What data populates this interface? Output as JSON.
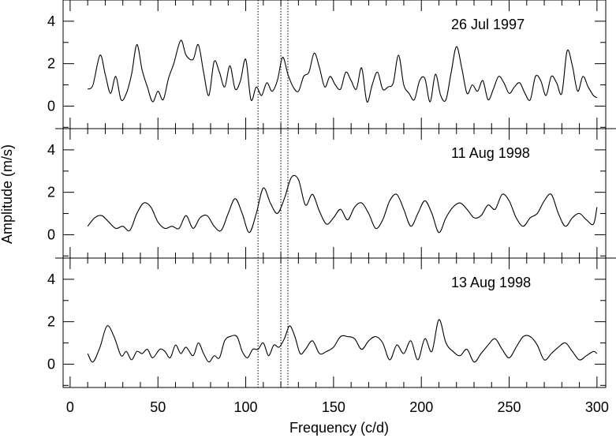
{
  "chart_data": {
    "type": "line",
    "xlabel": "Frequency (c/d)",
    "ylabel": "Amplitude (m/s)",
    "xlim": [
      -4,
      305
    ],
    "ylim": [
      -1.1,
      5.0
    ],
    "xticks": [
      0,
      50,
      100,
      150,
      200,
      250,
      300
    ],
    "yticks": [
      0,
      2,
      4
    ],
    "vlines": [
      107,
      120,
      124
    ],
    "grid": false,
    "legend": "none",
    "panels": [
      {
        "label": "26 Jul 1997",
        "x": [
          10,
          13,
          17,
          20,
          23,
          26,
          29,
          32,
          35,
          38,
          41,
          44,
          47,
          50,
          53,
          56,
          59,
          63,
          66,
          70,
          73,
          76,
          79,
          82,
          85,
          88,
          91,
          94,
          97,
          100,
          103,
          106,
          109,
          112,
          115,
          118,
          121,
          124,
          127,
          130,
          133,
          136,
          139,
          142,
          145,
          148,
          151,
          154,
          157,
          160,
          163,
          166,
          169,
          172,
          175,
          178,
          181,
          184,
          187,
          190,
          193,
          196,
          199,
          202,
          205,
          208,
          211,
          214,
          217,
          220,
          223,
          226,
          229,
          232,
          235,
          238,
          241,
          244,
          247,
          250,
          253,
          256,
          259,
          262,
          265,
          268,
          271,
          274,
          277,
          280,
          283,
          286,
          289,
          292,
          295,
          298,
          300
        ],
        "y": [
          0.8,
          1.0,
          2.4,
          1.5,
          0.6,
          1.4,
          0.3,
          0.6,
          1.5,
          2.9,
          1.7,
          0.9,
          0.2,
          0.7,
          0.3,
          1.3,
          2.0,
          3.1,
          2.4,
          2.2,
          2.9,
          1.6,
          0.5,
          2.1,
          1.6,
          0.9,
          1.9,
          0.8,
          1.2,
          2.2,
          0.3,
          0.9,
          0.5,
          1.1,
          0.7,
          1.2,
          2.3,
          1.5,
          0.9,
          0.7,
          1.4,
          1.6,
          2.5,
          1.8,
          0.9,
          1.4,
          1.0,
          0.8,
          1.6,
          1.2,
          0.8,
          1.8,
          0.2,
          1.0,
          1.6,
          0.8,
          0.9,
          1.1,
          2.4,
          1.0,
          0.6,
          0.3,
          1.2,
          1.3,
          0.2,
          1.5,
          0.5,
          0.3,
          1.6,
          2.8,
          1.8,
          0.6,
          1.0,
          0.7,
          1.2,
          0.3,
          0.8,
          1.4,
          1.1,
          0.6,
          0.9,
          1.1,
          0.6,
          0.3,
          1.4,
          1.2,
          0.5,
          1.4,
          1.1,
          0.6,
          2.6,
          1.9,
          0.7,
          1.4,
          0.9,
          0.5,
          0.4
        ]
      },
      {
        "label": "11 Aug 1998",
        "x": [
          10,
          14,
          18,
          22,
          26,
          30,
          34,
          38,
          42,
          46,
          50,
          54,
          58,
          62,
          66,
          70,
          74,
          78,
          82,
          86,
          90,
          94,
          98,
          102,
          106,
          110,
          114,
          118,
          122,
          126,
          130,
          134,
          138,
          142,
          146,
          150,
          154,
          158,
          162,
          166,
          170,
          174,
          178,
          182,
          186,
          190,
          194,
          198,
          202,
          206,
          210,
          214,
          218,
          222,
          226,
          230,
          234,
          238,
          242,
          246,
          250,
          254,
          258,
          262,
          266,
          270,
          274,
          278,
          282,
          286,
          290,
          294,
          298,
          300
        ],
        "y": [
          0.4,
          0.8,
          0.9,
          0.6,
          0.3,
          0.4,
          0.2,
          1.0,
          1.5,
          1.3,
          0.6,
          0.3,
          0.4,
          0.3,
          0.9,
          0.3,
          0.8,
          0.9,
          0.4,
          0.2,
          1.0,
          1.7,
          1.0,
          0.1,
          1.0,
          2.2,
          1.5,
          1.0,
          1.7,
          2.7,
          2.6,
          1.4,
          1.9,
          1.1,
          0.5,
          0.8,
          1.2,
          0.7,
          1.3,
          1.5,
          1.0,
          0.3,
          0.7,
          1.6,
          1.9,
          1.2,
          0.4,
          1.0,
          1.6,
          1.0,
          0.1,
          0.8,
          1.3,
          1.5,
          1.2,
          0.8,
          0.9,
          1.4,
          1.2,
          1.9,
          1.6,
          0.8,
          0.4,
          0.8,
          1.0,
          1.6,
          1.9,
          1.0,
          0.4,
          0.8,
          1.0,
          0.7,
          0.5,
          1.3
        ]
      },
      {
        "label": "13 Aug 1998",
        "x": [
          10,
          13,
          17,
          21,
          25,
          29,
          32,
          35,
          38,
          41,
          44,
          47,
          51,
          54,
          57,
          60,
          63,
          66,
          70,
          73,
          76,
          79,
          82,
          85,
          88,
          91,
          95,
          98,
          101,
          104,
          107,
          110,
          113,
          116,
          119,
          122,
          125,
          128,
          131,
          134,
          138,
          142,
          146,
          150,
          154,
          158,
          162,
          166,
          170,
          174,
          178,
          182,
          186,
          190,
          194,
          198,
          202,
          206,
          210,
          214,
          218,
          222,
          226,
          230,
          234,
          238,
          242,
          246,
          250,
          254,
          258,
          262,
          266,
          270,
          274,
          278,
          282,
          286,
          290,
          294,
          298,
          300
        ],
        "y": [
          0.5,
          0.1,
          0.8,
          1.8,
          1.3,
          0.4,
          0.6,
          0.2,
          0.6,
          0.5,
          0.7,
          0.3,
          0.7,
          0.6,
          0.3,
          0.9,
          0.5,
          0.8,
          0.4,
          1.0,
          0.5,
          0.1,
          0.4,
          0.3,
          1.1,
          1.3,
          1.3,
          0.6,
          0.3,
          0.7,
          0.7,
          1.0,
          0.4,
          0.9,
          0.8,
          1.2,
          1.8,
          1.3,
          0.5,
          0.7,
          1.1,
          0.5,
          0.6,
          0.8,
          1.3,
          1.3,
          1.2,
          0.7,
          1.1,
          1.3,
          1.0,
          0.2,
          0.9,
          0.5,
          1.1,
          0.2,
          1.2,
          0.6,
          2.1,
          1.0,
          0.6,
          0.4,
          0.7,
          0.1,
          0.5,
          0.9,
          1.2,
          0.7,
          0.3,
          0.8,
          1.3,
          1.3,
          0.9,
          0.2,
          0.5,
          0.8,
          1.0,
          0.6,
          0.2,
          0.4,
          0.6,
          0.5
        ]
      }
    ]
  }
}
